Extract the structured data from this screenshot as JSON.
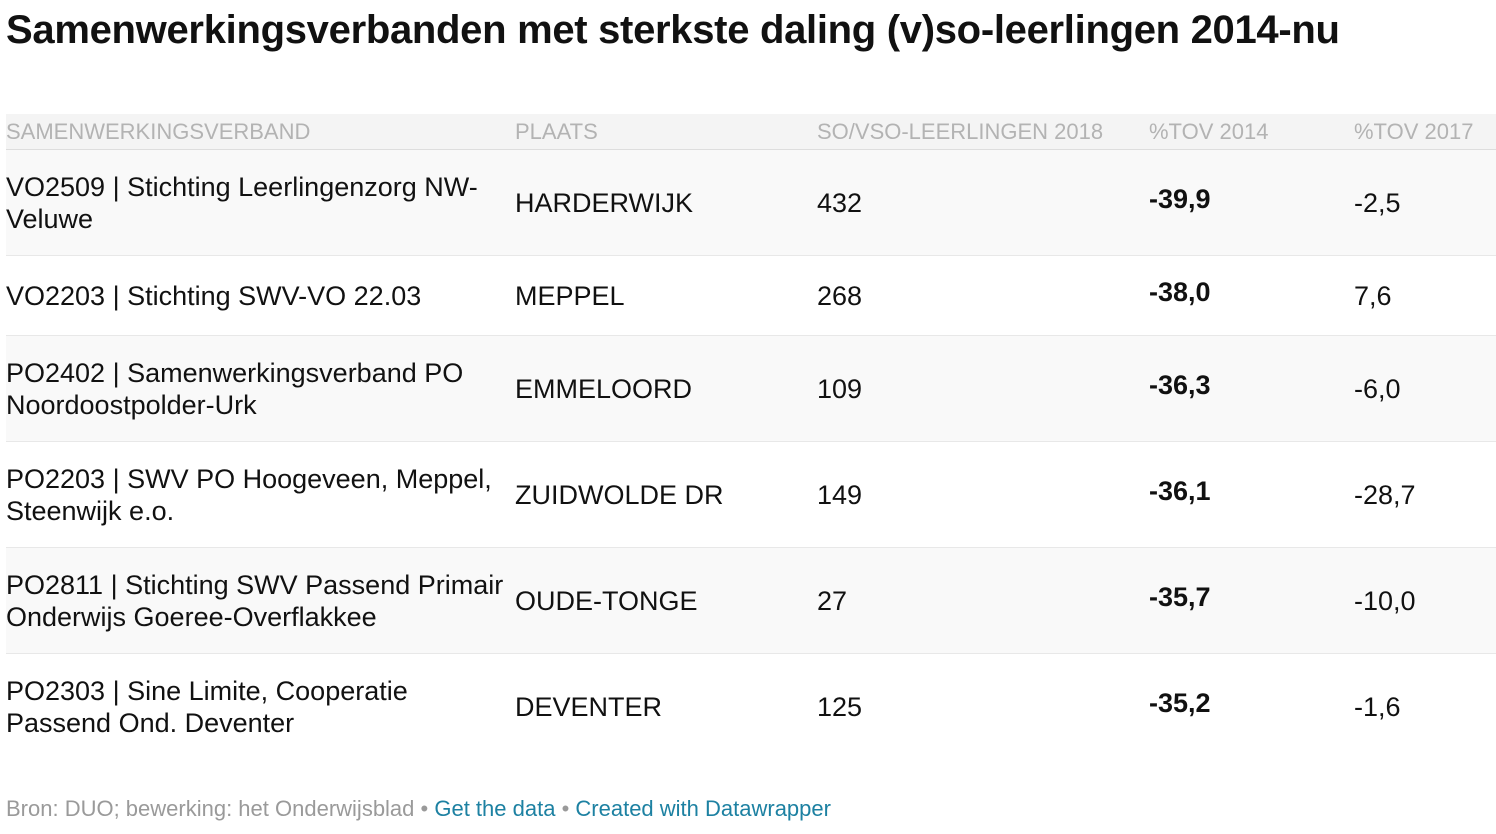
{
  "chart_data": {
    "type": "table",
    "title": "Samenwerkingsverbanden met sterkste daling (v)so-leerlingen 2014-nu",
    "columns": [
      "SAMENWERKINGSVERBAND",
      "PLAATS",
      "SO/VSO-LEERLINGEN 2018",
      "%TOV 2014",
      "%TOV 2017"
    ],
    "rows": [
      {
        "verband": "VO2509 | Stichting Leerlingenzorg NW-Veluwe",
        "plaats": "HARDERWIJK",
        "leerlingen": "432",
        "tov2014": "-39,9",
        "tov2017": "-2,5"
      },
      {
        "verband": "VO2203 | Stichting SWV-VO 22.03",
        "plaats": "MEPPEL",
        "leerlingen": "268",
        "tov2014": "-38,0",
        "tov2017": "7,6"
      },
      {
        "verband": "PO2402 | Samenwerkingsverband PO Noordoostpolder-Urk",
        "plaats": "EMMELOORD",
        "leerlingen": "109",
        "tov2014": "-36,3",
        "tov2017": "-6,0"
      },
      {
        "verband": "PO2203 | SWV PO Hoogeveen, Meppel, Steenwijk e.o.",
        "plaats": "ZUIDWOLDE DR",
        "leerlingen": "149",
        "tov2014": "-36,1",
        "tov2017": "-28,7"
      },
      {
        "verband": "PO2811 | Stichting SWV Passend Primair Onderwijs Goeree-Overflakkee",
        "plaats": "OUDE-TONGE",
        "leerlingen": "27",
        "tov2014": "-35,7",
        "tov2017": "-10,0"
      },
      {
        "verband": "PO2303 | Sine Limite, Cooperatie Passend Ond. Deventer",
        "plaats": "DEVENTER",
        "leerlingen": "125",
        "tov2014": "-35,2",
        "tov2017": "-1,6"
      }
    ]
  },
  "footer": {
    "source": "Bron: DUO; bewerking: het Onderwijsblad",
    "separator": " • ",
    "get_data": "Get the data",
    "created_with": "Created with Datawrapper"
  }
}
